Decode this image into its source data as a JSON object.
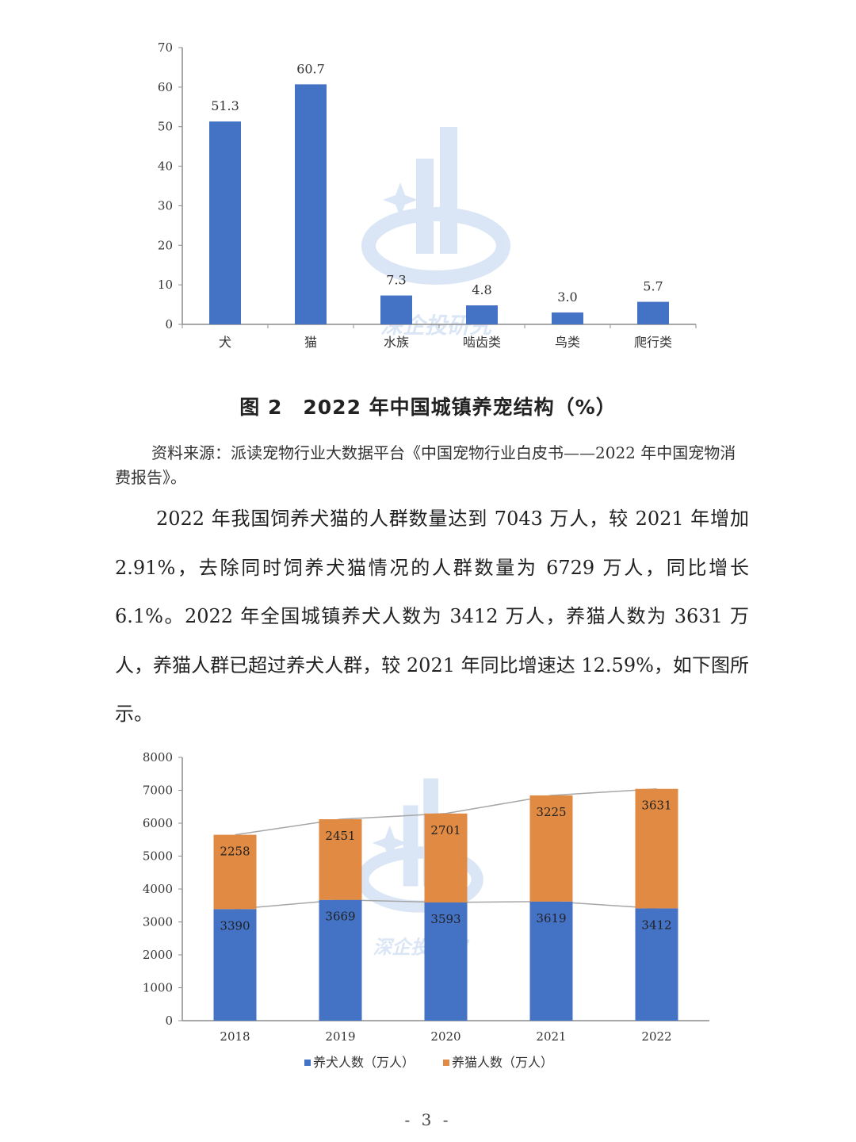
{
  "figure1": {
    "caption": "图 2　2022 年中国城镇养宠结构（%）",
    "source": "资料来源：派读宠物行业大数据平台《中国宠物行业白皮书——2022 年中国宠物消费报告》。"
  },
  "paragraph": "2022 年我国饲养犬猫的人群数量达到 7043 万人，较 2021 年增加 2.91%，去除同时饲养犬猫情况的人群数量为 6729 万人，同比增长 6.1%。2022 年全国城镇养犬人数为 3412 万人，养猫人数为 3631 万人，养猫人群已超过养犬人群，较 2021 年同比增速达 12.59%，如下图所示。",
  "page_number": "- 3 -",
  "watermark_text": "深企投研究",
  "colors": {
    "blue": "#4472C4",
    "orange": "#E08A43",
    "axis": "#8C8C8C",
    "trend": "#A6A6A6"
  },
  "chart_data": [
    {
      "type": "bar",
      "categories": [
        "犬",
        "猫",
        "水族",
        "啮齿类",
        "鸟类",
        "爬行类"
      ],
      "values": [
        51.3,
        60.7,
        7.3,
        4.8,
        3.0,
        5.7
      ],
      "value_labels": [
        "51.3",
        "60.7",
        "7.3",
        "4.8",
        "3.0",
        "5.7"
      ],
      "ylim": [
        0,
        70
      ],
      "yticks": [
        0,
        10,
        20,
        30,
        40,
        50,
        60,
        70
      ],
      "grid": false,
      "legend": "none"
    },
    {
      "type": "bar",
      "stacked": true,
      "categories": [
        "2018",
        "2019",
        "2020",
        "2021",
        "2022"
      ],
      "series": [
        {
          "name": "养犬人数（万人）",
          "values": [
            3390,
            3669,
            3593,
            3619,
            3412
          ],
          "color": "#4472C4"
        },
        {
          "name": "养猫人数（万人）",
          "values": [
            2258,
            2451,
            2701,
            3225,
            3631
          ],
          "color": "#E08A43"
        }
      ],
      "ylim": [
        0,
        8000
      ],
      "yticks": [
        0,
        1000,
        2000,
        3000,
        4000,
        5000,
        6000,
        7000,
        8000
      ],
      "series_lines": true,
      "grid": false,
      "legend": "bottom"
    }
  ]
}
